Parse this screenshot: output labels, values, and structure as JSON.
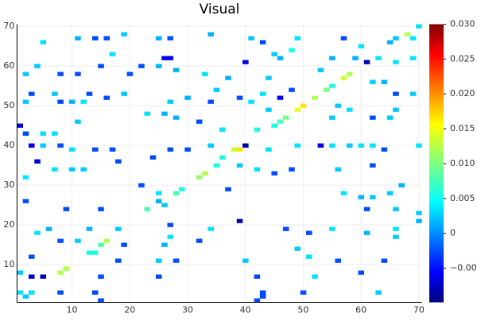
{
  "chart_data": {
    "type": "heatmap",
    "title": "Visual",
    "xlim": [
      0.5,
      70.5
    ],
    "ylim": [
      0.5,
      70.5
    ],
    "xticks": [
      10,
      20,
      30,
      40,
      50,
      60,
      70
    ],
    "yticks": [
      10,
      20,
      30,
      40,
      50,
      60,
      70
    ],
    "clim": [
      -0.0099,
      0.03
    ],
    "cticks": [
      {
        "value": -0.005,
        "label": "−0.005"
      },
      0,
      0.005,
      {
        "value": 0.01,
        "label": "0.010"
      },
      0.015,
      {
        "value": 0.02,
        "label": "0.020"
      },
      0.025,
      {
        "value": 0.03,
        "label": "0.030"
      }
    ],
    "colormap": "jet",
    "grid": true,
    "cells": [
      [
        70,
        70,
        0.004
      ],
      [
        68,
        68,
        0.012
      ],
      [
        5,
        66,
        0.004
      ],
      [
        11,
        67,
        0.002
      ],
      [
        14,
        67,
        -0.002
      ],
      [
        16,
        67,
        -0.002
      ],
      [
        19,
        68,
        0.003
      ],
      [
        25,
        67,
        0.002
      ],
      [
        27,
        67,
        -0.002
      ],
      [
        34,
        68,
        0.002
      ],
      [
        41,
        67,
        0.003
      ],
      [
        43,
        66,
        -0.002
      ],
      [
        49,
        67,
        0.004
      ],
      [
        57,
        67,
        -0.002
      ],
      [
        60,
        65,
        0.004
      ],
      [
        65,
        66,
        0.002
      ],
      [
        66,
        67,
        0.003
      ],
      [
        69,
        67,
        0.004
      ],
      [
        17,
        63,
        0.004
      ],
      [
        26,
        62,
        -0.006
      ],
      [
        27,
        62,
        -0.006
      ],
      [
        25,
        60,
        0.002
      ],
      [
        4,
        60,
        0.003
      ],
      [
        15,
        60,
        -0.002
      ],
      [
        22,
        60,
        -0.002
      ],
      [
        40,
        61,
        -0.006
      ],
      [
        45,
        63,
        0.003
      ],
      [
        46,
        62,
        0.002
      ],
      [
        48,
        64,
        0.006
      ],
      [
        55,
        62,
        0.002
      ],
      [
        59,
        62,
        0.002
      ],
      [
        61,
        61,
        -0.008
      ],
      [
        63,
        62,
        0.004
      ],
      [
        66,
        61,
        0.004
      ],
      [
        69,
        62,
        0.004
      ],
      [
        2,
        58,
        0.003
      ],
      [
        8,
        58,
        -0.002
      ],
      [
        11,
        58,
        -0.002
      ],
      [
        20,
        58,
        -0.002
      ],
      [
        28,
        59,
        0.002
      ],
      [
        33,
        58,
        0.004
      ],
      [
        37,
        57,
        0.002
      ],
      [
        44,
        57,
        0.003
      ],
      [
        53,
        59,
        0.003
      ],
      [
        57,
        57,
        0.013
      ],
      [
        58,
        58,
        0.012
      ],
      [
        62,
        56,
        0.003
      ],
      [
        64,
        56,
        0.002
      ],
      [
        3,
        53,
        -0.002
      ],
      [
        7,
        53,
        0.003
      ],
      [
        13,
        53,
        -0.002
      ],
      [
        19,
        53,
        0.003
      ],
      [
        35,
        54,
        0.003
      ],
      [
        43,
        53,
        0.004
      ],
      [
        46,
        52,
        -0.006
      ],
      [
        48,
        54,
        -0.002
      ],
      [
        50,
        50,
        0.016
      ],
      [
        49,
        49,
        0.014
      ],
      [
        52,
        52,
        0.012
      ],
      [
        54,
        54,
        0.01
      ],
      [
        55,
        55,
        0.006
      ],
      [
        66,
        53,
        -0.002
      ],
      [
        69,
        53,
        0.003
      ],
      [
        2,
        51,
        0.003
      ],
      [
        8,
        51,
        -0.002
      ],
      [
        10,
        51,
        0.002
      ],
      [
        12,
        51,
        0.004
      ],
      [
        16,
        52,
        -0.002
      ],
      [
        27,
        51,
        0.003
      ],
      [
        30,
        52,
        0.002
      ],
      [
        34,
        51,
        -0.002
      ],
      [
        39,
        52,
        -0.002
      ],
      [
        41,
        51,
        0.004
      ],
      [
        44,
        49,
        0.003
      ],
      [
        47,
        47,
        0.01
      ],
      [
        46,
        46,
        0.008
      ],
      [
        56,
        50,
        0.003
      ],
      [
        58,
        49,
        0.004
      ],
      [
        66,
        49,
        0.003
      ],
      [
        1,
        45,
        -0.006
      ],
      [
        2,
        43,
        -0.002
      ],
      [
        5,
        43,
        0.004
      ],
      [
        7,
        43,
        0.004
      ],
      [
        11,
        46,
        0.003
      ],
      [
        23,
        48,
        0.004
      ],
      [
        26,
        48,
        0.002
      ],
      [
        28,
        47,
        0.002
      ],
      [
        32,
        46,
        -0.002
      ],
      [
        36,
        44,
        0.004
      ],
      [
        42,
        44,
        0.006
      ],
      [
        45,
        45,
        0.006
      ],
      [
        55,
        47,
        0.003
      ],
      [
        62,
        47,
        -0.002
      ],
      [
        65,
        47,
        0.003
      ],
      [
        3,
        40,
        -0.006
      ],
      [
        5,
        40,
        0.003
      ],
      [
        8,
        40,
        -0.002
      ],
      [
        10,
        39,
        0.004
      ],
      [
        14,
        39,
        -0.002
      ],
      [
        17,
        39,
        -0.002
      ],
      [
        27,
        39,
        -0.002
      ],
      [
        30,
        39,
        -0.002
      ],
      [
        34,
        40,
        0.003
      ],
      [
        38,
        39,
        0.013
      ],
      [
        39,
        39,
        0.016
      ],
      [
        40,
        40,
        -0.008
      ],
      [
        44,
        39,
        0.004
      ],
      [
        49,
        40,
        0.004
      ],
      [
        53,
        40,
        -0.006
      ],
      [
        55,
        40,
        0.004
      ],
      [
        58,
        40,
        0.003
      ],
      [
        60,
        40,
        0.004
      ],
      [
        62,
        40,
        0.004
      ],
      [
        64,
        39,
        -0.002
      ],
      [
        70,
        40,
        0.004
      ],
      [
        4,
        36,
        -0.006
      ],
      [
        7,
        34,
        0.004
      ],
      [
        10,
        34,
        0.003
      ],
      [
        12,
        34,
        0.003
      ],
      [
        18,
        36,
        -0.002
      ],
      [
        24,
        37,
        -0.002
      ],
      [
        36,
        37,
        0.006
      ],
      [
        35,
        35,
        0.006
      ],
      [
        33,
        33,
        0.012
      ],
      [
        32,
        32,
        0.011
      ],
      [
        39,
        35,
        0.003
      ],
      [
        42,
        34,
        0.004
      ],
      [
        45,
        33,
        -0.002
      ],
      [
        48,
        34,
        -0.002
      ],
      [
        56,
        34,
        0.003
      ],
      [
        62,
        35,
        -0.002
      ],
      [
        2,
        32,
        0.004
      ],
      [
        22,
        30,
        -0.002
      ],
      [
        25,
        28,
        0.004
      ],
      [
        28,
        28,
        0.008
      ],
      [
        29,
        29,
        0.006
      ],
      [
        37,
        29,
        -0.002
      ],
      [
        57,
        28,
        0.004
      ],
      [
        60,
        27,
        0.002
      ],
      [
        62,
        27,
        0.003
      ],
      [
        65,
        28,
        0.003
      ],
      [
        67,
        30,
        0.002
      ],
      [
        2,
        26,
        -0.002
      ],
      [
        9,
        24,
        -0.002
      ],
      [
        15,
        24,
        -0.002
      ],
      [
        23,
        24,
        0.008
      ],
      [
        25,
        26,
        0.002
      ],
      [
        26,
        25,
        0.003
      ],
      [
        61,
        24,
        -0.002
      ],
      [
        66,
        24,
        0.003
      ],
      [
        70,
        23,
        0.003
      ],
      [
        4,
        18,
        0.004
      ],
      [
        6,
        19,
        0.002
      ],
      [
        13,
        19,
        0.002
      ],
      [
        18,
        19,
        0.003
      ],
      [
        27,
        20,
        -0.002
      ],
      [
        34,
        19,
        0.004
      ],
      [
        39,
        21,
        -0.008
      ],
      [
        47,
        19,
        -0.002
      ],
      [
        51,
        18,
        -0.002
      ],
      [
        55,
        19,
        0.004
      ],
      [
        61,
        18,
        0.002
      ],
      [
        66,
        19,
        0.004
      ],
      [
        70,
        21,
        0.002
      ],
      [
        8,
        16,
        -0.002
      ],
      [
        11,
        16,
        0.003
      ],
      [
        16,
        16,
        0.012
      ],
      [
        15,
        15,
        0.008
      ],
      [
        14,
        13,
        0.006
      ],
      [
        13,
        13,
        0.006
      ],
      [
        19,
        15,
        -0.002
      ],
      [
        26,
        15,
        0.002
      ],
      [
        27,
        17,
        0.004
      ],
      [
        32,
        16,
        -0.002
      ],
      [
        49,
        14,
        0.003
      ],
      [
        51,
        12,
        0.004
      ],
      [
        66,
        17,
        0.003
      ],
      [
        3,
        12,
        -0.002
      ],
      [
        9,
        9,
        0.012
      ],
      [
        8,
        8,
        0.012
      ],
      [
        18,
        11,
        -0.002
      ],
      [
        25,
        11,
        0.003
      ],
      [
        28,
        11,
        -0.002
      ],
      [
        40,
        11,
        0.003
      ],
      [
        56,
        11,
        -0.002
      ],
      [
        64,
        11,
        -0.002
      ],
      [
        1,
        8,
        0.003
      ],
      [
        3,
        7,
        -0.006
      ],
      [
        5,
        7,
        -0.008
      ],
      [
        15,
        7,
        -0.002
      ],
      [
        25,
        7,
        -0.002
      ],
      [
        42,
        7,
        -0.002
      ],
      [
        52,
        7,
        0.004
      ],
      [
        60,
        8,
        -0.002
      ],
      [
        1,
        3,
        0.004
      ],
      [
        2,
        2,
        0.003
      ],
      [
        3,
        3,
        0.004
      ],
      [
        8,
        3,
        -0.002
      ],
      [
        14,
        3,
        -0.002
      ],
      [
        43,
        3,
        -0.002
      ],
      [
        50,
        3,
        -0.002
      ],
      [
        63,
        3,
        0.003
      ],
      [
        15,
        1,
        -0.002
      ],
      [
        42,
        1,
        -0.002
      ],
      [
        43,
        2,
        -0.002
      ]
    ]
  }
}
